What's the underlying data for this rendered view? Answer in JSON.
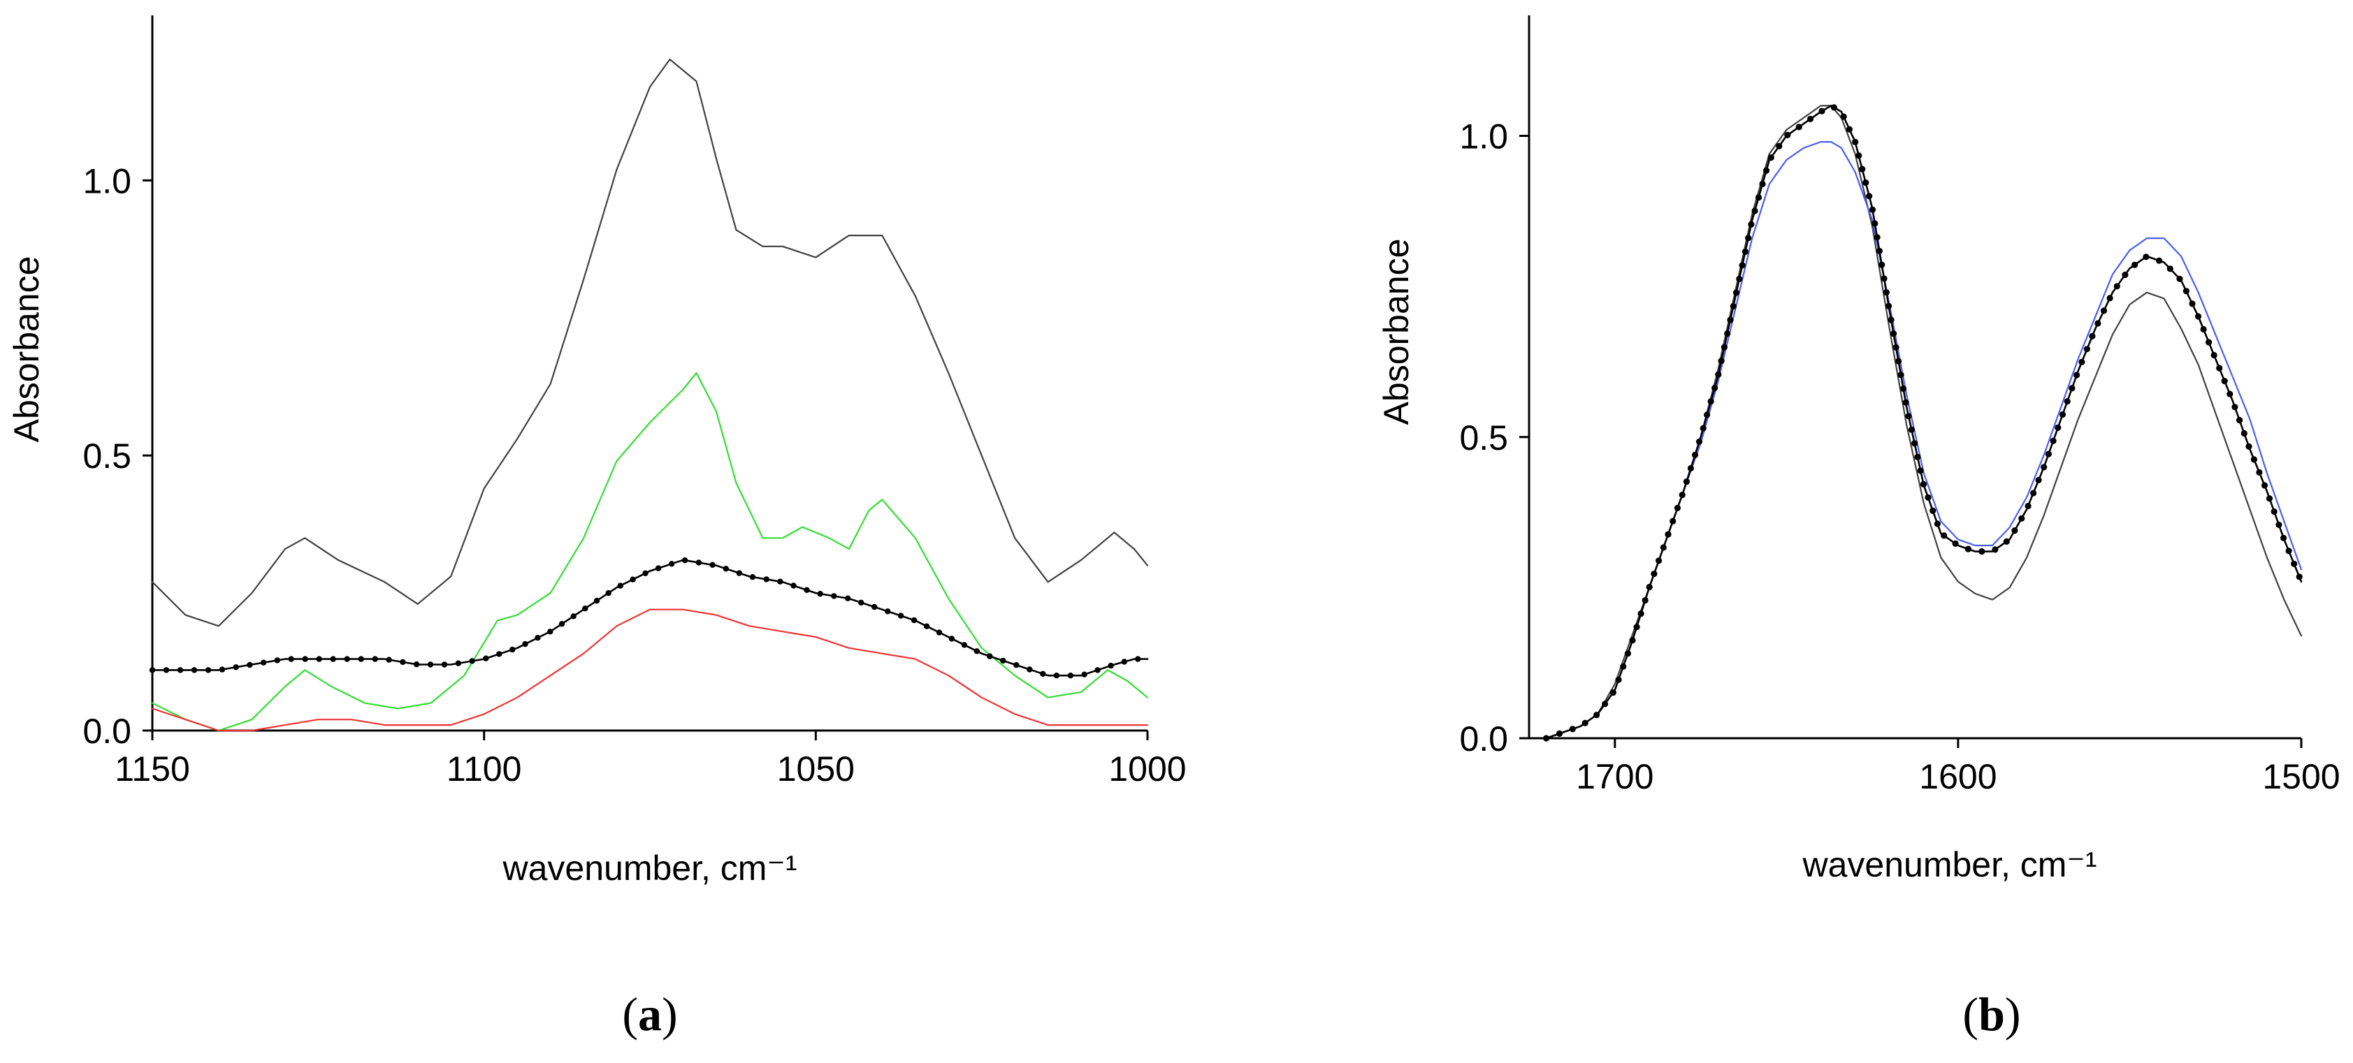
{
  "chart_data": [
    {
      "type": "line",
      "panel_label": "a",
      "xlabel": "wavenumber, cm⁻¹",
      "ylabel": "Absorbance",
      "xlim": [
        1150,
        1000
      ],
      "ylim": [
        0,
        1.3
      ],
      "x_ticks": [
        1150,
        1100,
        1050,
        1000
      ],
      "x_tick_labels": [
        "1150",
        "1100",
        "1050",
        "1000"
      ],
      "y_ticks": [
        0.0,
        0.5,
        1.0
      ],
      "y_tick_labels": [
        "0.0",
        "0.5",
        "1.0"
      ],
      "series": [
        {
          "name": "gray",
          "color": "#404040",
          "style": "line",
          "x": [
            1150,
            1145,
            1140,
            1135,
            1130,
            1127,
            1122,
            1115,
            1110,
            1105,
            1100,
            1095,
            1090,
            1085,
            1080,
            1075,
            1072,
            1068,
            1065,
            1062,
            1058,
            1055,
            1050,
            1045,
            1040,
            1035,
            1030,
            1025,
            1020,
            1015,
            1010,
            1005,
            1002,
            1000
          ],
          "y": [
            0.27,
            0.21,
            0.19,
            0.25,
            0.33,
            0.35,
            0.31,
            0.27,
            0.23,
            0.28,
            0.44,
            0.53,
            0.63,
            0.82,
            1.02,
            1.17,
            1.22,
            1.18,
            1.04,
            0.91,
            0.88,
            0.88,
            0.86,
            0.9,
            0.9,
            0.79,
            0.65,
            0.5,
            0.35,
            0.27,
            0.31,
            0.36,
            0.33,
            0.3
          ]
        },
        {
          "name": "green",
          "color": "#33dd33",
          "style": "line",
          "x": [
            1150,
            1145,
            1140,
            1135,
            1130,
            1127,
            1123,
            1118,
            1113,
            1108,
            1103,
            1098,
            1095,
            1090,
            1085,
            1080,
            1075,
            1070,
            1068,
            1065,
            1062,
            1058,
            1055,
            1052,
            1048,
            1045,
            1042,
            1040,
            1035,
            1030,
            1025,
            1020,
            1015,
            1010,
            1006,
            1003,
            1000
          ],
          "y": [
            0.05,
            0.02,
            0.0,
            0.02,
            0.08,
            0.11,
            0.08,
            0.05,
            0.04,
            0.05,
            0.1,
            0.2,
            0.21,
            0.25,
            0.35,
            0.49,
            0.56,
            0.62,
            0.65,
            0.58,
            0.45,
            0.35,
            0.35,
            0.37,
            0.35,
            0.33,
            0.4,
            0.42,
            0.35,
            0.24,
            0.15,
            0.1,
            0.06,
            0.07,
            0.11,
            0.09,
            0.06
          ]
        },
        {
          "name": "dotted",
          "color": "#000000",
          "style": "dotted",
          "x": [
            1150,
            1145,
            1140,
            1135,
            1130,
            1125,
            1120,
            1115,
            1110,
            1105,
            1100,
            1095,
            1090,
            1085,
            1080,
            1075,
            1070,
            1065,
            1060,
            1055,
            1050,
            1045,
            1040,
            1035,
            1030,
            1025,
            1020,
            1015,
            1010,
            1005,
            1002,
            1000
          ],
          "y": [
            0.11,
            0.11,
            0.11,
            0.12,
            0.13,
            0.13,
            0.13,
            0.13,
            0.12,
            0.12,
            0.13,
            0.15,
            0.18,
            0.22,
            0.26,
            0.29,
            0.31,
            0.3,
            0.28,
            0.27,
            0.25,
            0.24,
            0.22,
            0.2,
            0.17,
            0.14,
            0.12,
            0.1,
            0.1,
            0.12,
            0.13,
            0.13
          ]
        },
        {
          "name": "red",
          "color": "#ee3333",
          "style": "line",
          "x": [
            1150,
            1145,
            1140,
            1135,
            1130,
            1125,
            1120,
            1115,
            1110,
            1105,
            1100,
            1095,
            1090,
            1085,
            1080,
            1075,
            1070,
            1065,
            1060,
            1055,
            1050,
            1045,
            1040,
            1035,
            1030,
            1025,
            1020,
            1015,
            1010,
            1005,
            1000
          ],
          "y": [
            0.04,
            0.02,
            0.0,
            0.0,
            0.01,
            0.02,
            0.02,
            0.01,
            0.01,
            0.01,
            0.03,
            0.06,
            0.1,
            0.14,
            0.19,
            0.22,
            0.22,
            0.21,
            0.19,
            0.18,
            0.17,
            0.15,
            0.14,
            0.13,
            0.1,
            0.06,
            0.03,
            0.01,
            0.01,
            0.01,
            0.01
          ]
        }
      ]
    },
    {
      "type": "line",
      "panel_label": "b",
      "xlabel": "wavenumber, cm⁻¹",
      "ylabel": "Absorbance",
      "xlim": [
        1725,
        1500
      ],
      "ylim": [
        0,
        1.2
      ],
      "x_ticks": [
        1700,
        1600,
        1500
      ],
      "x_tick_labels": [
        "1700",
        "1600",
        "1500"
      ],
      "y_ticks": [
        0.0,
        0.5,
        1.0
      ],
      "y_tick_labels": [
        "0.0",
        "0.5",
        "1.0"
      ],
      "series": [
        {
          "name": "gray",
          "color": "#404040",
          "style": "line",
          "x": [
            1720,
            1715,
            1710,
            1705,
            1700,
            1695,
            1690,
            1685,
            1680,
            1675,
            1670,
            1665,
            1660,
            1655,
            1650,
            1645,
            1640,
            1637,
            1634,
            1630,
            1625,
            1620,
            1615,
            1610,
            1605,
            1600,
            1595,
            1590,
            1585,
            1580,
            1575,
            1570,
            1565,
            1560,
            1555,
            1550,
            1545,
            1540,
            1535,
            1530,
            1525,
            1520,
            1515,
            1510,
            1505,
            1500
          ],
          "y": [
            0.0,
            0.01,
            0.02,
            0.04,
            0.09,
            0.17,
            0.25,
            0.33,
            0.41,
            0.5,
            0.61,
            0.74,
            0.87,
            0.97,
            1.01,
            1.03,
            1.05,
            1.05,
            1.03,
            0.97,
            0.85,
            0.68,
            0.52,
            0.39,
            0.3,
            0.26,
            0.24,
            0.23,
            0.25,
            0.3,
            0.37,
            0.45,
            0.53,
            0.6,
            0.67,
            0.72,
            0.74,
            0.73,
            0.68,
            0.62,
            0.54,
            0.46,
            0.38,
            0.3,
            0.23,
            0.17
          ]
        },
        {
          "name": "blue",
          "color": "#4a5ef0",
          "style": "line",
          "x": [
            1720,
            1715,
            1710,
            1705,
            1700,
            1695,
            1690,
            1685,
            1680,
            1675,
            1670,
            1665,
            1660,
            1655,
            1650,
            1645,
            1640,
            1637,
            1634,
            1630,
            1625,
            1620,
            1615,
            1610,
            1605,
            1600,
            1595,
            1590,
            1585,
            1580,
            1575,
            1570,
            1565,
            1560,
            1555,
            1550,
            1545,
            1540,
            1535,
            1530,
            1525,
            1520,
            1515,
            1510,
            1505,
            1500
          ],
          "y": [
            0.0,
            0.01,
            0.02,
            0.04,
            0.08,
            0.16,
            0.25,
            0.33,
            0.41,
            0.49,
            0.59,
            0.71,
            0.83,
            0.92,
            0.96,
            0.98,
            0.99,
            0.99,
            0.98,
            0.94,
            0.86,
            0.72,
            0.57,
            0.44,
            0.36,
            0.33,
            0.32,
            0.32,
            0.35,
            0.4,
            0.47,
            0.55,
            0.63,
            0.7,
            0.77,
            0.81,
            0.83,
            0.83,
            0.8,
            0.74,
            0.67,
            0.6,
            0.53,
            0.44,
            0.36,
            0.28
          ]
        },
        {
          "name": "dotted",
          "color": "#000000",
          "style": "dotted",
          "x": [
            1720,
            1715,
            1710,
            1705,
            1700,
            1695,
            1690,
            1685,
            1680,
            1675,
            1670,
            1665,
            1660,
            1655,
            1650,
            1645,
            1640,
            1637,
            1634,
            1630,
            1625,
            1620,
            1615,
            1610,
            1605,
            1600,
            1595,
            1590,
            1585,
            1580,
            1575,
            1570,
            1565,
            1560,
            1555,
            1550,
            1545,
            1540,
            1535,
            1530,
            1525,
            1520,
            1515,
            1510,
            1505,
            1500
          ],
          "y": [
            0.0,
            0.01,
            0.02,
            0.04,
            0.08,
            0.16,
            0.25,
            0.33,
            0.41,
            0.5,
            0.6,
            0.73,
            0.86,
            0.96,
            1.0,
            1.02,
            1.04,
            1.05,
            1.04,
            0.99,
            0.88,
            0.71,
            0.55,
            0.42,
            0.34,
            0.32,
            0.31,
            0.31,
            0.33,
            0.38,
            0.45,
            0.53,
            0.61,
            0.68,
            0.74,
            0.78,
            0.8,
            0.79,
            0.76,
            0.7,
            0.63,
            0.56,
            0.48,
            0.41,
            0.33,
            0.26
          ]
        }
      ]
    }
  ]
}
